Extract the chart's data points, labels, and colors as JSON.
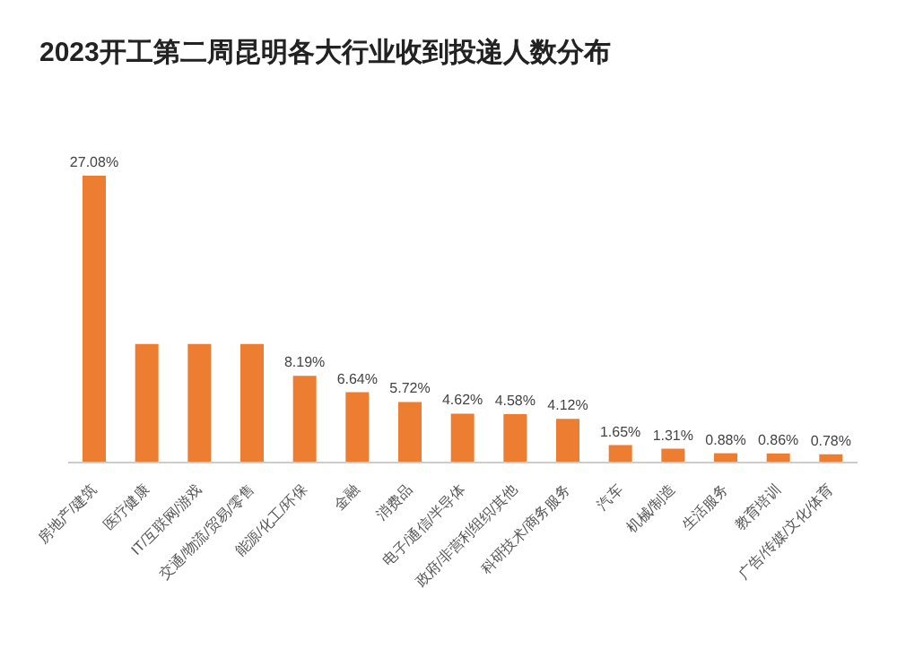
{
  "chart_data": {
    "type": "bar",
    "title": "2023开工第二周昆明各大行业收到投递人数分布",
    "categories": [
      "房地产/建筑",
      "医疗健康",
      "IT/互联网/游戏",
      "交通/物流/贸易/零售",
      "能源/化工/环保",
      "金融",
      "消费品",
      "电子/通信/半导体",
      "政府/非营利组织/其他",
      "科研技术/商务服务",
      "汽车",
      "机械/制造",
      "生活服务",
      "教育培训",
      "广告/传媒/文化/体育"
    ],
    "values": [
      27.08,
      11.2,
      11.2,
      11.2,
      8.19,
      6.64,
      5.72,
      4.62,
      4.58,
      4.12,
      1.65,
      1.31,
      0.88,
      0.86,
      0.78
    ],
    "value_labels": [
      "27.08%",
      null,
      null,
      null,
      "8.19%",
      "6.64%",
      "5.72%",
      "4.62%",
      "4.58%",
      "4.12%",
      "1.65%",
      "1.31%",
      "0.88%",
      "0.86%",
      "0.78%"
    ],
    "color": "#ed7d31",
    "tick_labels": "x"
  }
}
